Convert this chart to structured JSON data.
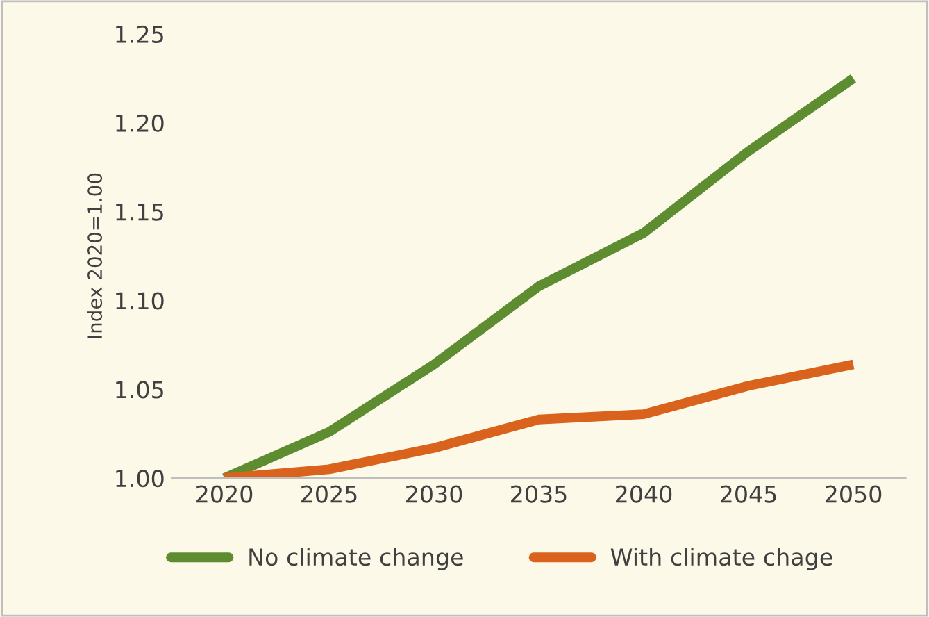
{
  "chart_data": {
    "type": "line",
    "ylabel": "Index 2020=1.00",
    "categories": [
      "2020",
      "2025",
      "2030",
      "2035",
      "2040",
      "2045",
      "2050"
    ],
    "series": [
      {
        "name": "No climate change",
        "color": "#5e8c31",
        "values": [
          1.0,
          1.026,
          1.064,
          1.108,
          1.138,
          1.184,
          1.225
        ]
      },
      {
        "name": "With climate chage",
        "color": "#d9621c",
        "values": [
          1.0,
          1.005,
          1.017,
          1.033,
          1.036,
          1.052,
          1.064
        ]
      }
    ],
    "ylim": [
      1.0,
      1.25
    ],
    "yticks": [
      {
        "value": 1.0,
        "label": "1.00"
      },
      {
        "value": 1.05,
        "label": "1.05"
      },
      {
        "value": 1.1,
        "label": "1.10"
      },
      {
        "value": 1.15,
        "label": "1.15"
      },
      {
        "value": 1.2,
        "label": "1.20"
      },
      {
        "value": 1.25,
        "label": "1.25"
      }
    ],
    "grid": false,
    "legend": "bottom",
    "marker": "none",
    "line_style": "solid"
  }
}
